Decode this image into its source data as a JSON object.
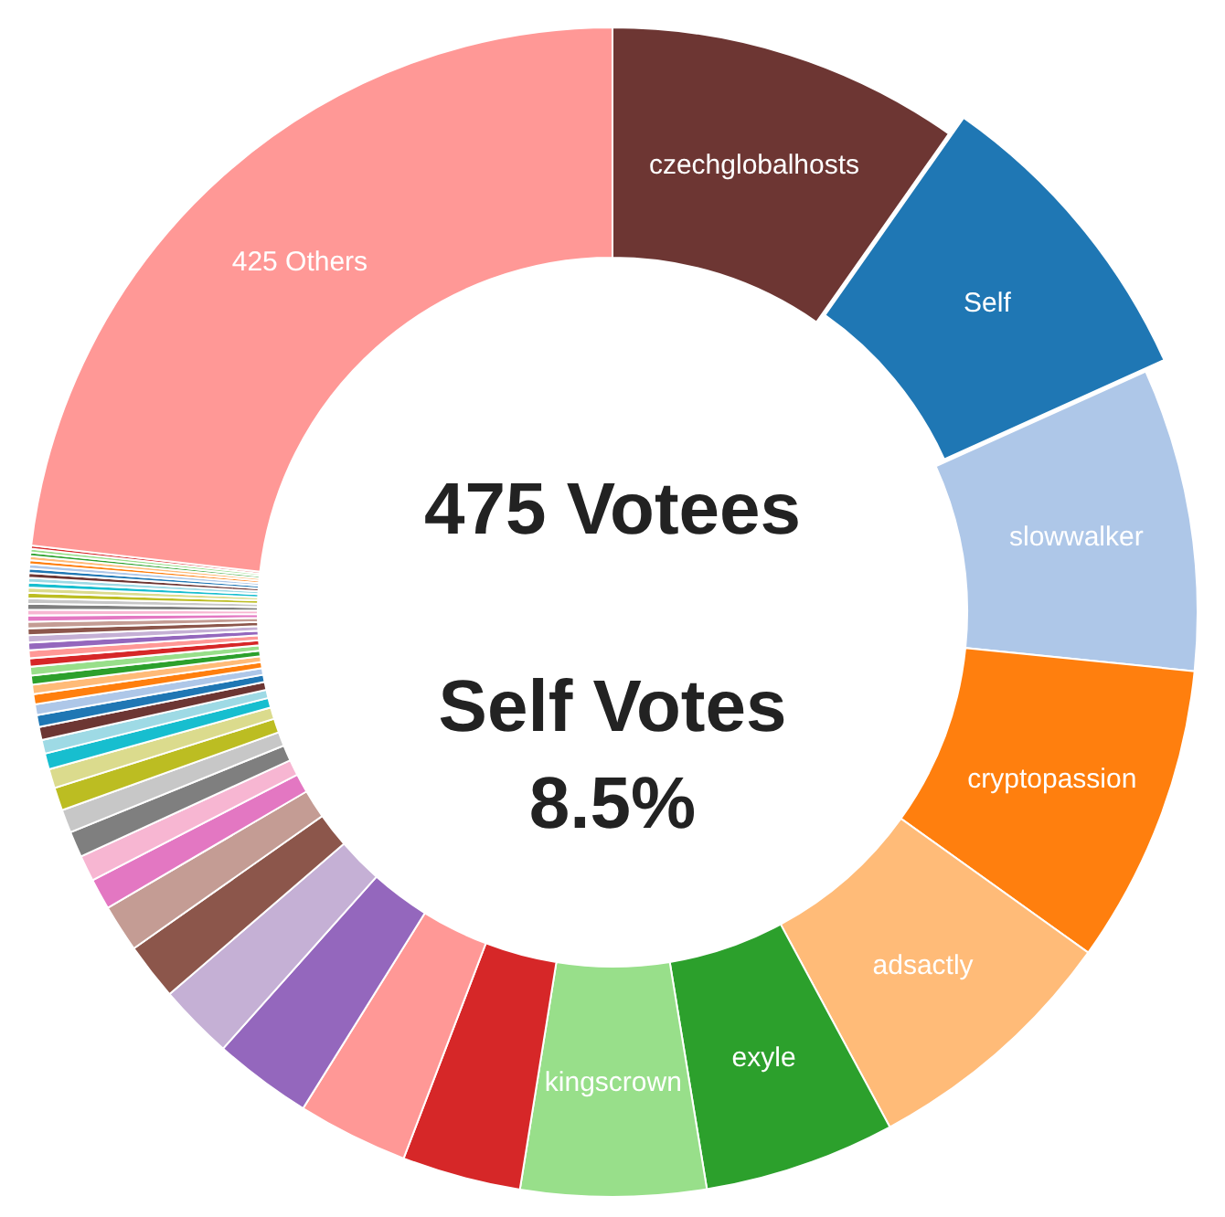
{
  "chart_data": {
    "type": "donut",
    "categories": [
      "czechglobalhosts",
      "Self",
      "slowwalker",
      "cryptopassion",
      "adsactly",
      "exyle",
      "kingscrown",
      null,
      null,
      null,
      null,
      null,
      null,
      null,
      null,
      null,
      null,
      null,
      null,
      null,
      null,
      null,
      null,
      null,
      null,
      null,
      null,
      null,
      null,
      null,
      null,
      null,
      null,
      null,
      null,
      null,
      null,
      null,
      null,
      null,
      null,
      null,
      null,
      null,
      null,
      null,
      null,
      null,
      null,
      null,
      "425 Others"
    ],
    "values": [
      9.75,
      8.5,
      8.36,
      8.28,
      7.25,
      5.28,
      5.11,
      3.28,
      3.06,
      2.72,
      2.08,
      1.58,
      1.31,
      0.86,
      0.72,
      0.72,
      0.64,
      0.64,
      0.53,
      0.44,
      0.38,
      0.36,
      0.33,
      0.3,
      0.28,
      0.26,
      0.25,
      0.24,
      0.23,
      0.22,
      0.21,
      0.2,
      0.19,
      0.18,
      0.17,
      0.16,
      0.16,
      0.15,
      0.15,
      0.14,
      0.14,
      0.13,
      0.13,
      0.12,
      0.12,
      0.11,
      0.11,
      0.1,
      0.1,
      0.09,
      23.18
    ],
    "colors": [
      "#6d3633",
      "#1f77b4",
      "#aec7e8",
      "#ff7f0e",
      "#ffbb78",
      "#2ca02c",
      "#98df8a",
      "#d62728",
      "#ff9896",
      "#9467bd",
      "#c5b0d5",
      "#8c564b",
      "#c49c94",
      "#e377c2",
      "#f7b6d2",
      "#7f7f7f",
      "#c7c7c7",
      "#bcbd22",
      "#dbdb8d",
      "#17becf",
      "#9edae5",
      "#6d3633",
      "#1f77b4",
      "#aec7e8",
      "#ff7f0e",
      "#ffbb78",
      "#2ca02c",
      "#98df8a",
      "#d62728",
      "#ff9896",
      "#9467bd",
      "#c5b0d5",
      "#8c564b",
      "#c49c94",
      "#e377c2",
      "#f7b6d2",
      "#7f7f7f",
      "#c7c7c7",
      "#bcbd22",
      "#dbdb8d",
      "#17becf",
      "#9edae5",
      "#6d3633",
      "#1f77b4",
      "#aec7e8",
      "#ff7f0e",
      "#ffbb78",
      "#2ca02c",
      "#98df8a",
      "#d62728",
      "#ff9896"
    ],
    "annotations": [
      "475 Votees",
      "Self Votes",
      "8.5%"
    ]
  }
}
